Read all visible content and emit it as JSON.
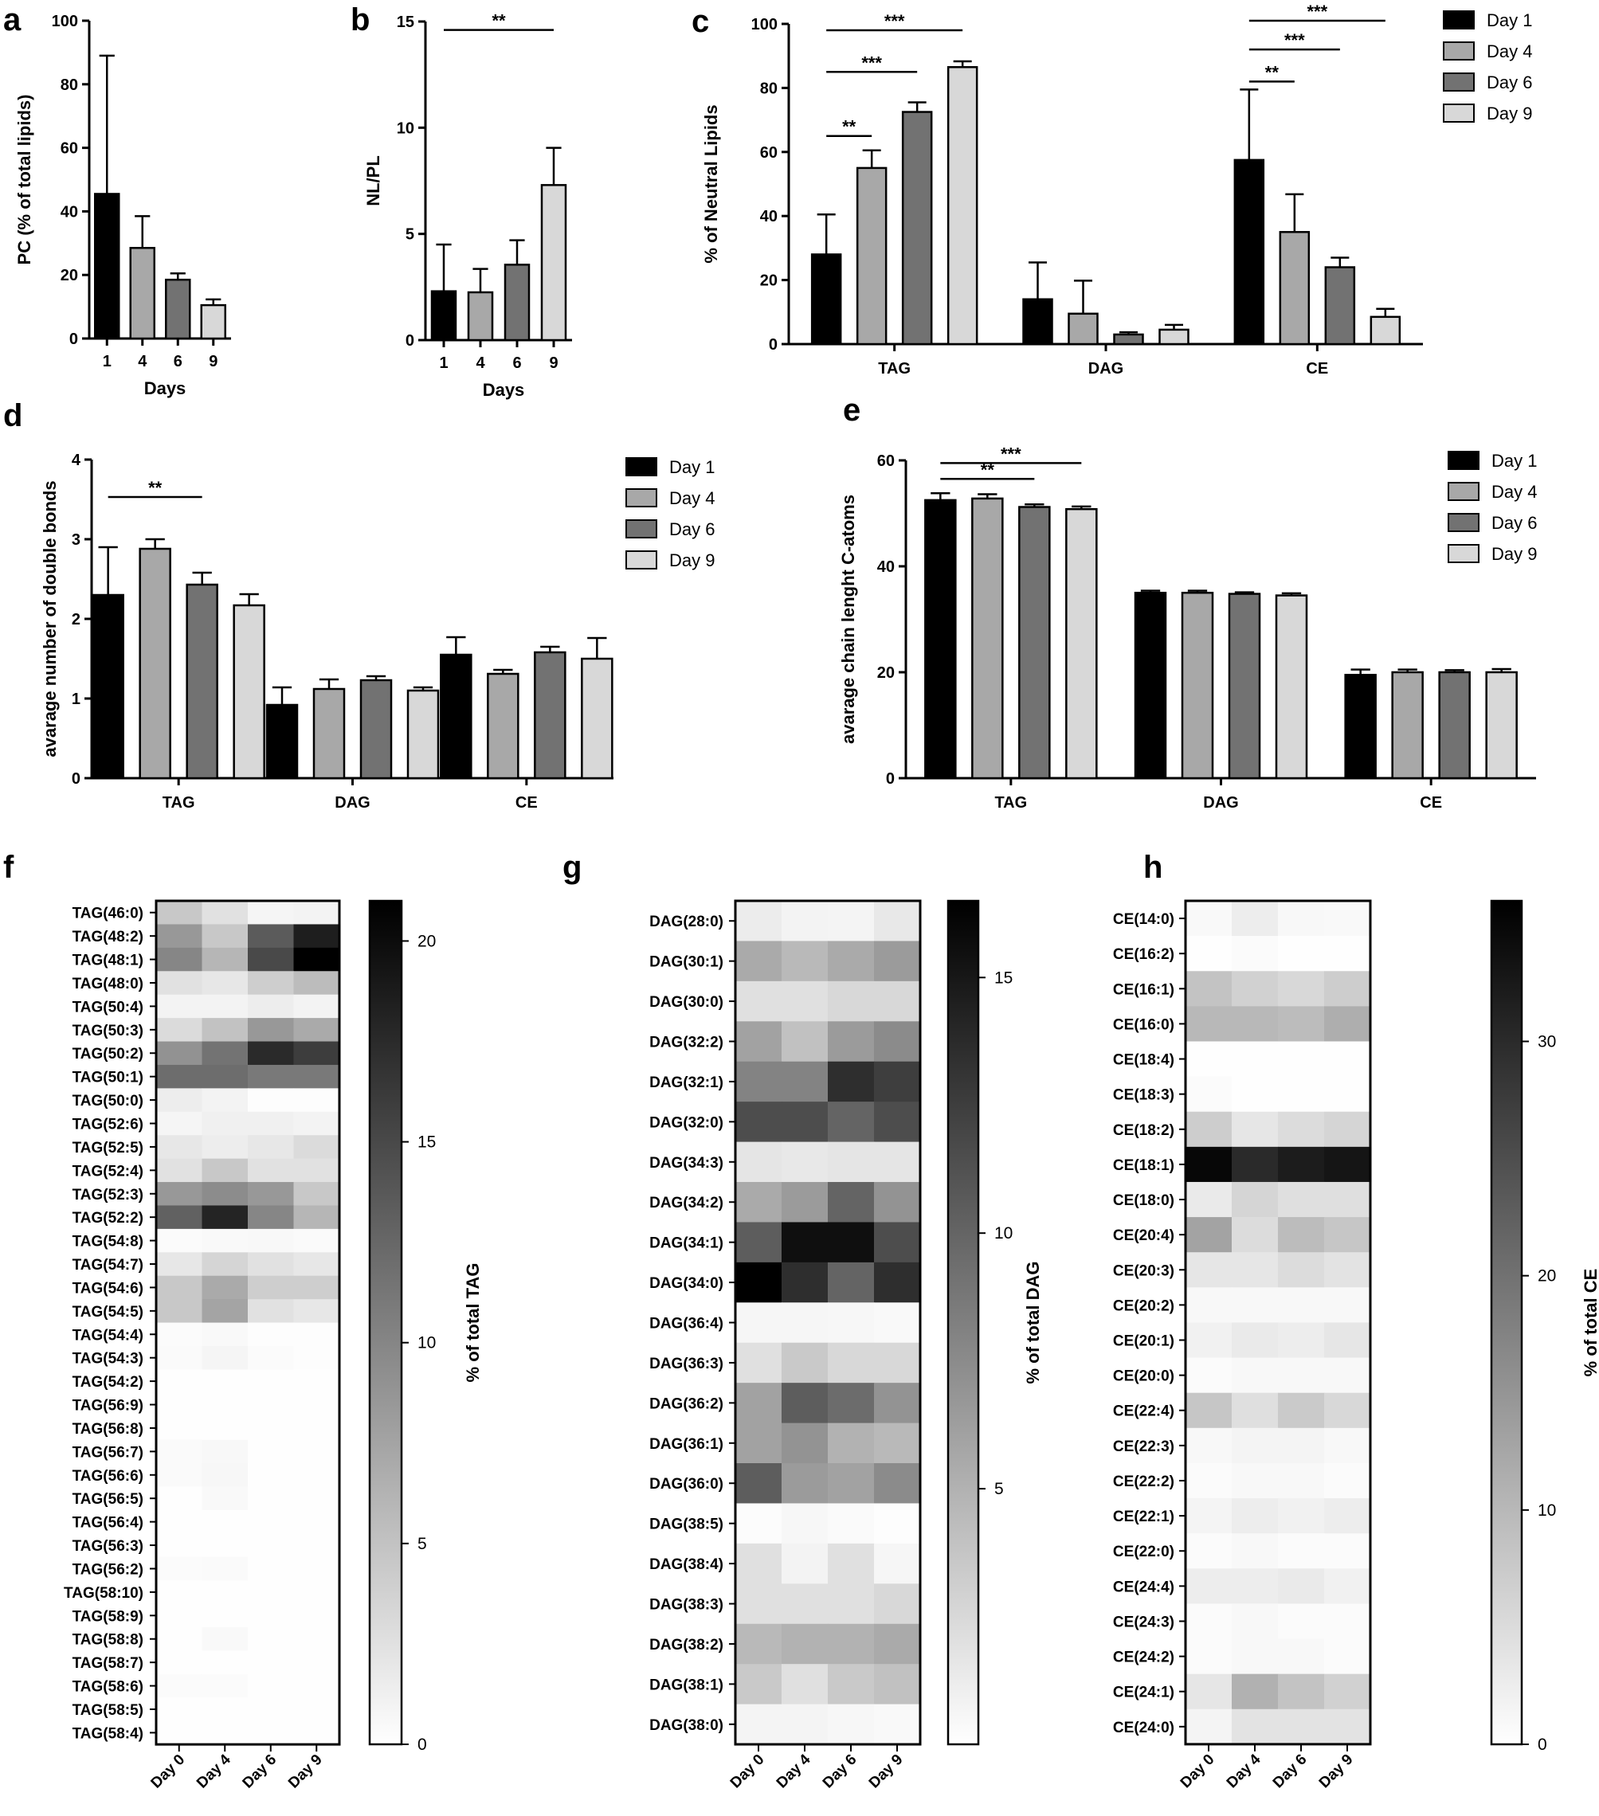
{
  "chart_data": [
    {
      "panel": "a",
      "type": "bar",
      "categories": [
        "1",
        "4",
        "6",
        "9"
      ],
      "values": [
        45.5,
        28.5,
        18.5,
        10.5
      ],
      "errors": [
        43.5,
        10,
        2,
        1.8
      ],
      "xlabel": "Days",
      "ylabel": "PC (% of total lipids)",
      "ylim": [
        0,
        100
      ],
      "yticks": [
        0,
        20,
        40,
        60,
        80,
        100
      ],
      "colors": [
        "#000000",
        "#a8a8a8",
        "#727272",
        "#d8d8d8"
      ]
    },
    {
      "panel": "b",
      "type": "bar",
      "categories": [
        "1",
        "4",
        "6",
        "9"
      ],
      "values": [
        2.3,
        2.25,
        3.55,
        7.3
      ],
      "errors": [
        2.2,
        1.1,
        1.15,
        1.75
      ],
      "xlabel": "Days",
      "ylabel": "NL/PL",
      "ylim": [
        0,
        15
      ],
      "yticks": [
        0,
        5,
        10,
        15
      ],
      "colors": [
        "#000000",
        "#a8a8a8",
        "#727272",
        "#d8d8d8"
      ],
      "significance": [
        {
          "from": 0,
          "to": 3,
          "label": "**",
          "y": 14.6
        }
      ]
    },
    {
      "panel": "c",
      "type": "bar",
      "categories": [
        "TAG",
        "DAG",
        "CE"
      ],
      "series": [
        {
          "name": "Day 1",
          "values": [
            28,
            14,
            57.5
          ],
          "errors": [
            12.5,
            11.5,
            22
          ]
        },
        {
          "name": "Day 4",
          "values": [
            55,
            9.5,
            35
          ],
          "errors": [
            5.5,
            10.3,
            11.8
          ]
        },
        {
          "name": "Day 6",
          "values": [
            72.5,
            3,
            24
          ],
          "errors": [
            3,
            0.7,
            3
          ]
        },
        {
          "name": "Day 9",
          "values": [
            86.5,
            4.5,
            8.5
          ],
          "errors": [
            1.8,
            1.5,
            2.5
          ]
        }
      ],
      "ylabel": "% of Neutral Lipids",
      "ylim": [
        0,
        100
      ],
      "yticks": [
        0,
        20,
        40,
        60,
        80,
        100
      ],
      "colors": [
        "#000000",
        "#a8a8a8",
        "#727272",
        "#d8d8d8"
      ],
      "legend": "top-right",
      "significance": [
        {
          "group": 0,
          "from": 0,
          "to": 1,
          "label": "**",
          "y": 65
        },
        {
          "group": 0,
          "from": 0,
          "to": 2,
          "label": "***",
          "y": 85
        },
        {
          "group": 0,
          "from": 0,
          "to": 3,
          "label": "***",
          "y": 98
        },
        {
          "group": 2,
          "from": 0,
          "to": 1,
          "label": "**",
          "y": 82
        },
        {
          "group": 2,
          "from": 0,
          "to": 2,
          "label": "***",
          "y": 92
        },
        {
          "group": 2,
          "from": 0,
          "to": 3,
          "label": "***",
          "y": 101
        }
      ]
    },
    {
      "panel": "d",
      "type": "bar",
      "categories": [
        "TAG",
        "DAG",
        "CE"
      ],
      "series": [
        {
          "name": "Day 1",
          "values": [
            2.3,
            0.92,
            1.55
          ],
          "errors": [
            0.6,
            0.22,
            0.22
          ]
        },
        {
          "name": "Day 4",
          "values": [
            2.88,
            1.12,
            1.31
          ],
          "errors": [
            0.12,
            0.12,
            0.05
          ]
        },
        {
          "name": "Day 6",
          "values": [
            2.43,
            1.23,
            1.58
          ],
          "errors": [
            0.15,
            0.05,
            0.07
          ]
        },
        {
          "name": "Day 9",
          "values": [
            2.17,
            1.1,
            1.5
          ],
          "errors": [
            0.14,
            0.04,
            0.26
          ]
        }
      ],
      "ylabel": "avarage number of double bonds",
      "ylim": [
        0,
        4
      ],
      "yticks": [
        0,
        1,
        2,
        3,
        4
      ],
      "colors": [
        "#000000",
        "#a8a8a8",
        "#727272",
        "#d8d8d8"
      ],
      "legend": "top-right",
      "significance": [
        {
          "group": 0,
          "from": 0,
          "to": 2,
          "label": "**",
          "y": 3.53
        }
      ]
    },
    {
      "panel": "e",
      "type": "bar",
      "categories": [
        "TAG",
        "DAG",
        "CE"
      ],
      "series": [
        {
          "name": "Day 1",
          "values": [
            52.5,
            35,
            19.5
          ],
          "errors": [
            1.3,
            0.4,
            1
          ]
        },
        {
          "name": "Day 4",
          "values": [
            52.8,
            35,
            20
          ],
          "errors": [
            0.8,
            0.4,
            0.5
          ]
        },
        {
          "name": "Day 6",
          "values": [
            51.2,
            34.8,
            20
          ],
          "errors": [
            0.5,
            0.3,
            0.4
          ]
        },
        {
          "name": "Day 9",
          "values": [
            50.8,
            34.5,
            20
          ],
          "errors": [
            0.5,
            0.4,
            0.6
          ]
        }
      ],
      "ylabel": "avarage chain lenght C-atoms",
      "ylim": [
        0,
        60
      ],
      "yticks": [
        0,
        20,
        40,
        60
      ],
      "colors": [
        "#000000",
        "#a8a8a8",
        "#727272",
        "#d8d8d8"
      ],
      "legend": "top-right",
      "significance": [
        {
          "group": 0,
          "from": 0,
          "to": 2,
          "label": "**",
          "y": 56.5
        },
        {
          "group": 0,
          "from": 0,
          "to": 3,
          "label": "***",
          "y": 59.5
        }
      ]
    },
    {
      "panel": "f",
      "type": "heatmap",
      "columns": [
        "Day 0",
        "Day 4",
        "Day 6",
        "Day 9"
      ],
      "rows": [
        "TAG(46:0)",
        "TAG(48:2)",
        "TAG(48:1)",
        "TAG(48:0)",
        "TAG(50:4)",
        "TAG(50:3)",
        "TAG(50:2)",
        "TAG(50:1)",
        "TAG(50:0)",
        "TAG(52:6)",
        "TAG(52:5)",
        "TAG(52:4)",
        "TAG(52:3)",
        "TAG(52:2)",
        "TAG(54:8)",
        "TAG(54:7)",
        "TAG(54:6)",
        "TAG(54:5)",
        "TAG(54:4)",
        "TAG(54:3)",
        "TAG(54:2)",
        "TAG(56:9)",
        "TAG(56:8)",
        "TAG(56:7)",
        "TAG(56:6)",
        "TAG(56:5)",
        "TAG(56:4)",
        "TAG(56:3)",
        "TAG(56:2)",
        "TAG(58:10)",
        "TAG(58:9)",
        "TAG(58:8)",
        "TAG(58:7)",
        "TAG(58:6)",
        "TAG(58:5)",
        "TAG(58:4)"
      ],
      "values": [
        [
          4.5,
          2.5,
          0.8,
          1.0
        ],
        [
          8.5,
          4.5,
          13.5,
          18.5
        ],
        [
          10.0,
          6.0,
          15.0,
          21.0
        ],
        [
          2.5,
          2.0,
          4.0,
          5.5
        ],
        [
          1.0,
          1.0,
          1.5,
          1.0
        ],
        [
          3.0,
          5.0,
          8.5,
          7.0
        ],
        [
          9.0,
          11.5,
          17.5,
          16.0
        ],
        [
          12.0,
          12.0,
          11.0,
          11.0
        ],
        [
          1.5,
          1.0,
          0.2,
          0.2
        ],
        [
          0.8,
          1.2,
          1.2,
          1.0
        ],
        [
          2.0,
          1.5,
          2.0,
          3.0
        ],
        [
          2.5,
          4.5,
          2.5,
          2.5
        ],
        [
          8.5,
          9.5,
          8.5,
          4.5
        ],
        [
          13.0,
          18.0,
          10.0,
          6.0
        ],
        [
          0.3,
          0.5,
          0.6,
          0.4
        ],
        [
          2.0,
          3.5,
          2.5,
          2.0
        ],
        [
          4.5,
          7.0,
          4.0,
          4.0
        ],
        [
          4.5,
          7.5,
          2.5,
          2.0
        ],
        [
          0.3,
          0.5,
          0.2,
          0.2
        ],
        [
          0.4,
          0.8,
          0.3,
          0.2
        ],
        [
          0.1,
          0.1,
          0.1,
          0.1
        ],
        [
          0.1,
          0.1,
          0.1,
          0.1
        ],
        [
          0.1,
          0.1,
          0.1,
          0.1
        ],
        [
          0.4,
          0.6,
          0.1,
          0.1
        ],
        [
          0.4,
          0.7,
          0.1,
          0.1
        ],
        [
          0.1,
          0.5,
          0.1,
          0.1
        ],
        [
          0.1,
          0.1,
          0.1,
          0.1
        ],
        [
          0.1,
          0.1,
          0.1,
          0.1
        ],
        [
          0.3,
          0.4,
          0.1,
          0.1
        ],
        [
          0.1,
          0.1,
          0.1,
          0.1
        ],
        [
          0.1,
          0.1,
          0.1,
          0.1
        ],
        [
          0.1,
          0.5,
          0.1,
          0.1
        ],
        [
          0.1,
          0.1,
          0.1,
          0.1
        ],
        [
          0.3,
          0.3,
          0.1,
          0.1
        ],
        [
          0.1,
          0.1,
          0.1,
          0.1
        ],
        [
          0.1,
          0.1,
          0.1,
          0.1
        ]
      ],
      "vmin": 0,
      "vmax": 21,
      "colorbar_ticks": [
        0,
        5,
        10,
        15,
        20
      ],
      "colorbar_label": "% of total TAG"
    },
    {
      "panel": "g",
      "type": "heatmap",
      "columns": [
        "Day 0",
        "Day 4",
        "Day 6",
        "Day 9"
      ],
      "rows": [
        "DAG(28:0)",
        "DAG(30:1)",
        "DAG(30:0)",
        "DAG(32:2)",
        "DAG(32:1)",
        "DAG(32:0)",
        "DAG(34:3)",
        "DAG(34:2)",
        "DAG(34:1)",
        "DAG(34:0)",
        "DAG(36:4)",
        "DAG(36:3)",
        "DAG(36:2)",
        "DAG(36:1)",
        "DAG(36:0)",
        "DAG(38:5)",
        "DAG(38:4)",
        "DAG(38:3)",
        "DAG(38:2)",
        "DAG(38:1)",
        "DAG(38:0)"
      ],
      "values": [
        [
          1.2,
          0.8,
          0.7,
          1.5
        ],
        [
          5.5,
          4.5,
          5.5,
          6.5
        ],
        [
          2.0,
          2.0,
          2.5,
          2.5
        ],
        [
          6.0,
          4.0,
          6.5,
          7.5
        ],
        [
          8.0,
          8.0,
          13.5,
          12.5
        ],
        [
          11.5,
          11.5,
          10.0,
          11.5
        ],
        [
          1.7,
          1.5,
          1.7,
          1.7
        ],
        [
          5.5,
          6.5,
          10.0,
          7.0
        ],
        [
          10.5,
          15.5,
          15.5,
          11.5
        ],
        [
          16.5,
          13.5,
          10.0,
          13.5
        ],
        [
          0.6,
          0.6,
          0.5,
          0.4
        ],
        [
          2.0,
          3.5,
          2.5,
          2.5
        ],
        [
          6.0,
          10.5,
          9.5,
          7.0
        ],
        [
          6.0,
          7.0,
          5.0,
          4.5
        ],
        [
          10.5,
          6.5,
          6.0,
          7.5
        ],
        [
          0.2,
          0.5,
          0.3,
          0.1
        ],
        [
          2.0,
          0.8,
          2.0,
          0.6
        ],
        [
          2.0,
          2.0,
          2.0,
          2.5
        ],
        [
          4.5,
          5.0,
          5.0,
          5.5
        ],
        [
          3.5,
          2.0,
          3.5,
          4.0
        ],
        [
          0.7,
          0.7,
          0.5,
          0.4
        ]
      ],
      "vmin": 0,
      "vmax": 16.5,
      "colorbar_ticks": [
        5,
        10,
        15
      ],
      "colorbar_label": "% of total DAG"
    },
    {
      "panel": "h",
      "type": "heatmap",
      "columns": [
        "Day 0",
        "Day 4",
        "Day 6",
        "Day 9"
      ],
      "rows": [
        "CE(14:0)",
        "CE(16:2)",
        "CE(16:1)",
        "CE(16:0)",
        "CE(18:4)",
        "CE(18:3)",
        "CE(18:2)",
        "CE(18:1)",
        "CE(18:0)",
        "CE(20:4)",
        "CE(20:3)",
        "CE(20:2)",
        "CE(20:1)",
        "CE(20:0)",
        "CE(22:4)",
        "CE(22:3)",
        "CE(22:2)",
        "CE(22:1)",
        "CE(22:0)",
        "CE(24:4)",
        "CE(24:3)",
        "CE(24:2)",
        "CE(24:1)",
        "CE(24:0)"
      ],
      "values": [
        [
          0.8,
          2.5,
          1.0,
          0.8
        ],
        [
          0.2,
          0.5,
          0.2,
          0.2
        ],
        [
          8.5,
          6.5,
          5.5,
          7.0
        ],
        [
          10.0,
          10.0,
          9.5,
          11.5
        ],
        [
          0.1,
          0.1,
          0.1,
          0.1
        ],
        [
          0.6,
          0.2,
          0.2,
          0.2
        ],
        [
          7.0,
          3.5,
          5.0,
          6.0
        ],
        [
          35.0,
          30.0,
          32.0,
          33.0
        ],
        [
          3.0,
          6.0,
          4.5,
          4.5
        ],
        [
          13.0,
          5.0,
          9.5,
          8.0
        ],
        [
          3.5,
          3.5,
          5.0,
          4.0
        ],
        [
          1.0,
          1.0,
          1.0,
          1.0
        ],
        [
          2.0,
          3.0,
          2.5,
          3.5
        ],
        [
          0.5,
          1.0,
          1.0,
          1.0
        ],
        [
          8.0,
          4.5,
          7.5,
          5.5
        ],
        [
          1.0,
          1.5,
          1.5,
          1.0
        ],
        [
          0.5,
          1.0,
          1.0,
          0.5
        ],
        [
          1.5,
          2.5,
          2.0,
          2.5
        ],
        [
          0.5,
          1.0,
          0.5,
          0.5
        ],
        [
          2.5,
          2.5,
          3.0,
          2.0
        ],
        [
          0.5,
          1.0,
          0.5,
          0.5
        ],
        [
          0.5,
          1.0,
          1.0,
          0.5
        ],
        [
          3.5,
          11.0,
          8.5,
          6.5
        ],
        [
          1.5,
          4.0,
          4.0,
          4.0
        ]
      ],
      "vmin": 0,
      "vmax": 36,
      "colorbar_ticks": [
        0,
        10,
        20,
        30
      ],
      "colorbar_label": "% of total CE"
    }
  ]
}
